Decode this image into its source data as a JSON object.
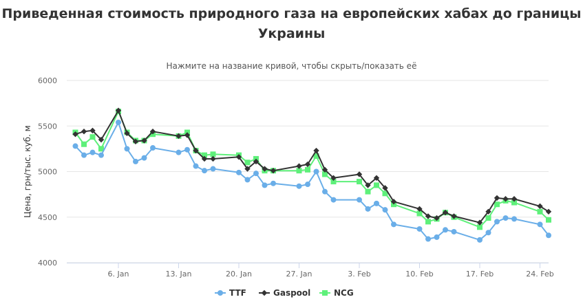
{
  "title_lines": [
    "Приведенная стоимость природного газа на европейских хабах до границы",
    "Украины"
  ],
  "subtitle": "Нажмите на название кривой, чтобы скрыть/показать её",
  "colors": {
    "TTF": "#6aaee8",
    "Gaspool": "#333333",
    "NCG": "#5ef07a"
  },
  "chart_data": {
    "type": "line",
    "title": "Приведенная стоимость природного газа на европейских хабах до границы Украины",
    "subtitle": "Нажмите на название кривой, чтобы скрыть/показать её",
    "ylabel": "Цена, грн/тыс. куб. м",
    "xlabel": "",
    "ylim": [
      4000,
      6000
    ],
    "yticks": [
      4000,
      4500,
      5000,
      5500,
      6000
    ],
    "grid": true,
    "legend": "bottom",
    "xticks": [
      "6. Jan",
      "13. Jan",
      "20. Jan",
      "27. Jan",
      "3. Feb",
      "10. Feb",
      "17. Feb",
      "24. Feb"
    ],
    "xtick_dates": [
      "2020-01-06",
      "2020-01-13",
      "2020-01-20",
      "2020-01-27",
      "2020-02-03",
      "2020-02-10",
      "2020-02-17",
      "2020-02-24"
    ],
    "xlim": [
      "2019-12-31",
      "2020-02-25"
    ],
    "x": [
      "2020-01-01",
      "2020-01-02",
      "2020-01-03",
      "2020-01-04",
      "2020-01-06",
      "2020-01-07",
      "2020-01-08",
      "2020-01-09",
      "2020-01-10",
      "2020-01-13",
      "2020-01-14",
      "2020-01-15",
      "2020-01-16",
      "2020-01-17",
      "2020-01-20",
      "2020-01-21",
      "2020-01-22",
      "2020-01-23",
      "2020-01-24",
      "2020-01-27",
      "2020-01-28",
      "2020-01-29",
      "2020-01-30",
      "2020-01-31",
      "2020-02-03",
      "2020-02-04",
      "2020-02-05",
      "2020-02-06",
      "2020-02-07",
      "2020-02-10",
      "2020-02-11",
      "2020-02-12",
      "2020-02-13",
      "2020-02-14",
      "2020-02-17",
      "2020-02-18",
      "2020-02-19",
      "2020-02-20",
      "2020-02-21",
      "2020-02-24",
      "2020-02-25"
    ],
    "series": [
      {
        "name": "TTF",
        "marker": "circle",
        "values": [
          5280,
          5180,
          5210,
          5180,
          5540,
          5250,
          5110,
          5150,
          5260,
          5210,
          5240,
          5060,
          5010,
          5030,
          4990,
          4910,
          4980,
          4850,
          4870,
          4840,
          4860,
          5000,
          4780,
          4690,
          4690,
          4590,
          4650,
          4580,
          4420,
          4370,
          4260,
          4280,
          4360,
          4340,
          4250,
          4330,
          4450,
          4490,
          4480,
          4420,
          4300
        ]
      },
      {
        "name": "Gaspool",
        "marker": "diamond",
        "values": [
          5410,
          5440,
          5450,
          5350,
          5670,
          5420,
          5330,
          5340,
          5440,
          5390,
          5400,
          5230,
          5140,
          5140,
          5160,
          5030,
          5110,
          5030,
          5010,
          5060,
          5080,
          5230,
          5020,
          4930,
          4970,
          4850,
          4930,
          4820,
          4670,
          4590,
          4510,
          4490,
          4550,
          4510,
          4440,
          4560,
          4710,
          4700,
          4700,
          4620,
          4560
        ]
      },
      {
        "name": "NCG",
        "marker": "square",
        "values": [
          5430,
          5300,
          5380,
          5250,
          5660,
          5430,
          5340,
          5340,
          5410,
          5390,
          5430,
          5230,
          5180,
          5190,
          5180,
          5100,
          5140,
          5010,
          5010,
          5010,
          5020,
          5170,
          4970,
          4890,
          4890,
          4780,
          4850,
          4760,
          4640,
          4540,
          4450,
          4480,
          4550,
          4500,
          4390,
          4490,
          4640,
          4680,
          4660,
          4560,
          4470
        ]
      }
    ]
  }
}
